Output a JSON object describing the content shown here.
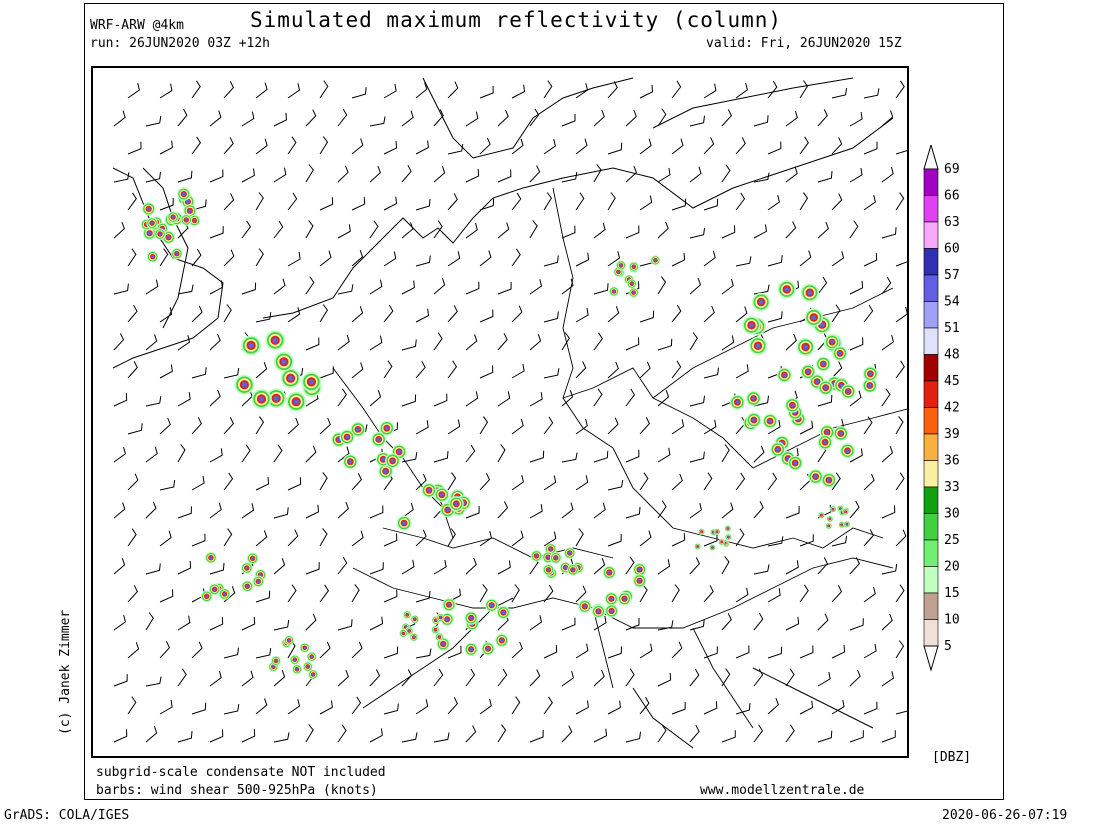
{
  "header": {
    "model": "WRF-ARW @4km",
    "title": "Simulated maximum reflectivity (column)",
    "run": "run: 26JUN2020 03Z +12h",
    "valid": "valid: Fri, 26JUN2020 15Z"
  },
  "footer": {
    "note1": "subgrid-scale condensate NOT included",
    "note2": "barbs: wind shear 500-925hPa (knots)",
    "website": "www.modellzentrale.de",
    "grads": "GrADS: COLA/IGES",
    "timestamp": "2020-06-26-07:19",
    "credit": "(c) Janek Zimmer"
  },
  "legend": {
    "unit": "[DBZ]",
    "levels": [
      "69",
      "66",
      "63",
      "60",
      "57",
      "54",
      "51",
      "48",
      "45",
      "42",
      "39",
      "36",
      "33",
      "30",
      "25",
      "20",
      "15",
      "10",
      "5"
    ],
    "colors": [
      "#a000c0",
      "#e040f0",
      "#f8a8f8",
      "#3030b0",
      "#6060e0",
      "#a0a0f8",
      "#e0e0ff",
      "#a00000",
      "#e02010",
      "#f86010",
      "#f8b040",
      "#f8f0a0",
      "#10a010",
      "#40d040",
      "#70f070",
      "#c0ffc0",
      "#c0a090",
      "#f0e0d8"
    ]
  },
  "map_legend_colors": {
    "border": "#000000",
    "grid": "#000000"
  }
}
